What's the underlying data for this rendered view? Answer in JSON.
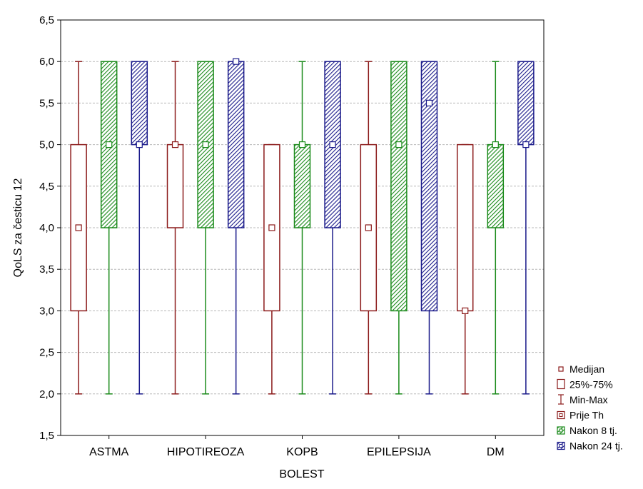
{
  "chart_data": {
    "type": "boxplot",
    "xlabel": "BOLEST",
    "ylabel": "QoLS za česticu 12",
    "ylim": [
      1.5,
      6.5
    ],
    "y_ticks": [
      "1,5",
      "2,0",
      "2,5",
      "3,0",
      "3,5",
      "4,0",
      "4,5",
      "5,0",
      "5,5",
      "6,0",
      "6,5"
    ],
    "grid": true,
    "categories": [
      "ASTMA",
      "HIPOTIREOZA",
      "KOPB",
      "EPILEPSIJA",
      "DM"
    ],
    "series": [
      {
        "name": "Prije Th",
        "color": "#8b1a1a",
        "fill": "none",
        "boxes": [
          {
            "min": 2,
            "q1": 3,
            "median": 4,
            "q3": 5,
            "max": 6
          },
          {
            "min": 2,
            "q1": 4,
            "median": 5,
            "q3": 5,
            "max": 6
          },
          {
            "min": 2,
            "q1": 3,
            "median": 4,
            "q3": 5,
            "max": 5
          },
          {
            "min": 2,
            "q1": 3,
            "median": 4,
            "q3": 5,
            "max": 6
          },
          {
            "min": 2,
            "q1": 3,
            "median": 3,
            "q3": 5,
            "max": 5
          }
        ]
      },
      {
        "name": "Nakon 8 tj.",
        "color": "#1a8a1a",
        "fill": "hatch",
        "boxes": [
          {
            "min": 2,
            "q1": 4,
            "median": 5,
            "q3": 6,
            "max": 6
          },
          {
            "min": 2,
            "q1": 4,
            "median": 5,
            "q3": 6,
            "max": 6
          },
          {
            "min": 2,
            "q1": 4,
            "median": 5,
            "q3": 5,
            "max": 6
          },
          {
            "min": 2,
            "q1": 3,
            "median": 5,
            "q3": 6,
            "max": 6
          },
          {
            "min": 2,
            "q1": 4,
            "median": 5,
            "q3": 5,
            "max": 6
          }
        ]
      },
      {
        "name": "Nakon 24 tj.",
        "color": "#1a1a8a",
        "fill": "hatch",
        "boxes": [
          {
            "min": 2,
            "q1": 5,
            "median": 5,
            "q3": 6,
            "max": 6
          },
          {
            "min": 2,
            "q1": 4,
            "median": 6,
            "q3": 6,
            "max": 6
          },
          {
            "min": 2,
            "q1": 4,
            "median": 5,
            "q3": 6,
            "max": 6
          },
          {
            "min": 2,
            "q1": 3,
            "median": 5.5,
            "q3": 6,
            "max": 6
          },
          {
            "min": 2,
            "q1": 5,
            "median": 5,
            "q3": 6,
            "max": 6
          }
        ]
      }
    ],
    "legend": {
      "placement": "bottom-right",
      "items": [
        {
          "label": "Medijan",
          "kind": "median"
        },
        {
          "label": "25%-75%",
          "kind": "box"
        },
        {
          "label": "Min-Max",
          "kind": "whisker"
        },
        {
          "label": "Prije Th",
          "kind": "series",
          "series": 0
        },
        {
          "label": "Nakon 8 tj.",
          "kind": "series",
          "series": 1
        },
        {
          "label": "Nakon 24 tj.",
          "kind": "series",
          "series": 2
        }
      ]
    }
  }
}
